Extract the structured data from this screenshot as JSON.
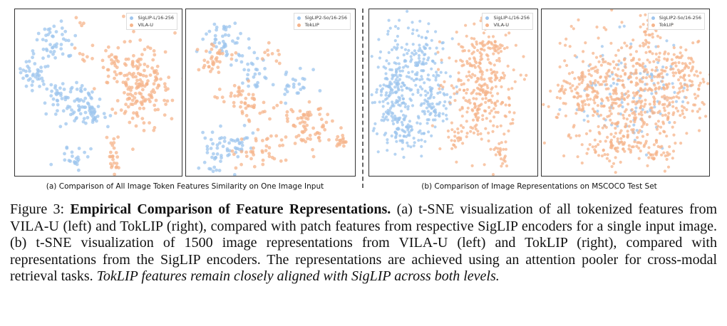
{
  "colors": {
    "blue": "#9ec5ee",
    "orange": "#f5b48b"
  },
  "panels": [
    {
      "legend": [
        "SigLIP-L/16-256",
        "VILA-U"
      ]
    },
    {
      "legend": [
        "SigLIP2-So/16-256",
        "TokLIP"
      ]
    },
    {
      "legend": [
        "SigLIP-L/16-256",
        "VILA-U"
      ]
    },
    {
      "legend": [
        "SigLIP2-So/16-256",
        "TokLIP"
      ]
    }
  ],
  "subcaptions": {
    "a": "(a) Comparison of All Image Token Features Similarity on One Image Input",
    "b": "(b) Comparison of Image Representations on MSCOCO Test Set"
  },
  "caption": {
    "label": "Figure 3:",
    "title": "Empirical Comparison of Feature Representations.",
    "body": "(a) t-SNE visualization of all tokenized features from VILA-U (left) and TokLIP (right), compared with patch features from respective SigLIP encoders for a single input image. (b) t-SNE visualization of 1500 image representations from VILA-U (left) and TokLIP (right), compared with representations from the SigLIP encoders. The representations are achieved using an attention pooler for cross-modal retrieval tasks.",
    "emphasis": "TokLIP features remain closely aligned with SigLIP across both levels."
  }
}
